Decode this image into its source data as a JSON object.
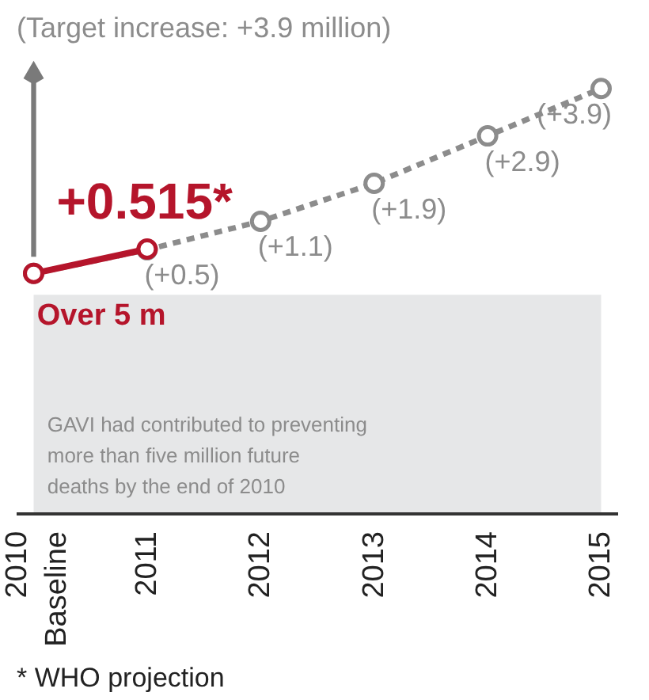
{
  "chart_data": {
    "type": "line",
    "title": "(Target increase: +3.9 million)",
    "categories": [
      "2010\nBaseline",
      "2011",
      "2012",
      "2013",
      "2014",
      "2015"
    ],
    "series": [
      {
        "color": "#8c8c8c",
        "values": [
          0,
          0.5,
          1.1,
          1.9,
          2.9,
          3.9
        ],
        "value_labels": [
          null,
          "(+0.5)",
          "(+1.1)",
          "(+1.9)",
          "(+2.9)",
          "(+3.9)"
        ],
        "line_style": "dashed"
      },
      {
        "color": "#b5152b",
        "values": [
          0,
          0.515,
          null,
          null,
          null,
          null
        ],
        "value_labels": [
          null,
          "+0.515*",
          null,
          null,
          null,
          null
        ],
        "line_style": "solid"
      }
    ],
    "tick_labels": "x",
    "grid": false,
    "marker": "circle",
    "annotations": [
      "Over 5 m",
      "GAVI had contributed to preventing\nmore than five million future\ndeaths by the end of 2010",
      "* WHO projection"
    ]
  }
}
